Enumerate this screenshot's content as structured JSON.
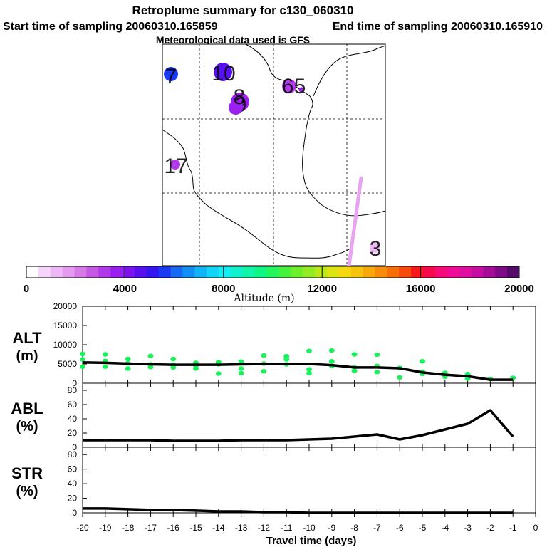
{
  "chart_data": {
    "title": "Retroplume summary for c130_060310",
    "start_label": "Start time of sampling 20060310.165859",
    "end_label": "End time of sampling 20060310.165910",
    "met_label": "Meteorological data used is GFS",
    "map": {
      "type": "map",
      "plume_markers": [
        {
          "label": "7",
          "altitude": 5500,
          "size": 3
        },
        {
          "label": "10",
          "altitude": 4300,
          "size": 4
        },
        {
          "label": "9",
          "altitude": 3500,
          "size": 4
        },
        {
          "label": "8",
          "altitude": 3300,
          "size": 3
        },
        {
          "label": "6",
          "altitude": 3000,
          "size": 3
        },
        {
          "label": "5",
          "altitude": 3600,
          "size": 1
        },
        {
          "label": "17",
          "altitude": 3000,
          "size": 2
        },
        {
          "label": "3",
          "altitude": 1200,
          "size": 2
        }
      ],
      "trail_altitude": 1000
    },
    "colorbar": {
      "label": "Altitude (m)",
      "min": 0,
      "max": 20000,
      "ticks": [
        "0",
        "4000",
        "8000",
        "12000",
        "16000",
        "20000"
      ],
      "colors": [
        "#ffffff",
        "#f5d6fb",
        "#edb8f5",
        "#e39af0",
        "#d57ae8",
        "#c659e4",
        "#b33aea",
        "#9b1fef",
        "#7d12ef",
        "#5810ef",
        "#3316f2",
        "#1a3bf4",
        "#1668f5",
        "#128ff6",
        "#10b4f8",
        "#0fd6f9",
        "#10f0f4",
        "#0ff2ce",
        "#0ff6a8",
        "#10f682",
        "#22f65e",
        "#44f43c",
        "#6cf02c",
        "#93ec22",
        "#b9e818",
        "#dde412",
        "#f3da10",
        "#f7c40c",
        "#f8a808",
        "#f88c06",
        "#f86e06",
        "#f84a0a",
        "#f81818",
        "#f80a4a",
        "#f80a78",
        "#f00c96",
        "#e00ea0",
        "#c80ea2",
        "#a60c9a",
        "#7e0a86",
        "#560a6a"
      ]
    },
    "panels": [
      {
        "id": "alt",
        "label_line1": "ALT",
        "label_line2": "(m)",
        "ymin": 0,
        "ymax": 20000,
        "yticks": [
          "20000",
          "15000",
          "10000",
          "5000",
          "0"
        ],
        "x": [
          -20,
          -19,
          -18,
          -17,
          -16,
          -15,
          -14,
          -13,
          -12,
          -11,
          -10,
          -9,
          -8,
          -7,
          -6,
          -5,
          -4,
          -3,
          -2,
          -1
        ],
        "values": [
          5400,
          5300,
          5100,
          4900,
          4800,
          4800,
          4800,
          4900,
          5000,
          5000,
          5000,
          4700,
          4100,
          4100,
          3900,
          2800,
          2200,
          1800,
          900,
          900
        ],
        "scatter": [
          {
            "x": -20,
            "y": 7600
          },
          {
            "x": -20,
            "y": 6200
          },
          {
            "x": -20,
            "y": 4300
          },
          {
            "x": -19,
            "y": 7500
          },
          {
            "x": -19,
            "y": 5800
          },
          {
            "x": -19,
            "y": 4300
          },
          {
            "x": -18,
            "y": 6300
          },
          {
            "x": -18,
            "y": 5200
          },
          {
            "x": -18,
            "y": 3800
          },
          {
            "x": -17,
            "y": 7100
          },
          {
            "x": -17,
            "y": 4900
          },
          {
            "x": -17,
            "y": 4200
          },
          {
            "x": -16,
            "y": 6300
          },
          {
            "x": -16,
            "y": 4800
          },
          {
            "x": -16,
            "y": 4100
          },
          {
            "x": -15,
            "y": 5300
          },
          {
            "x": -15,
            "y": 4500
          },
          {
            "x": -15,
            "y": 3800
          },
          {
            "x": -14,
            "y": 5500
          },
          {
            "x": -14,
            "y": 4900
          },
          {
            "x": -14,
            "y": 2500
          },
          {
            "x": -13,
            "y": 5600
          },
          {
            "x": -13,
            "y": 3800
          },
          {
            "x": -13,
            "y": 2600
          },
          {
            "x": -12,
            "y": 7200
          },
          {
            "x": -12,
            "y": 5100
          },
          {
            "x": -12,
            "y": 3100
          },
          {
            "x": -11,
            "y": 7000
          },
          {
            "x": -11,
            "y": 6200
          },
          {
            "x": -11,
            "y": 4900
          },
          {
            "x": -10,
            "y": 8400
          },
          {
            "x": -10,
            "y": 3600
          },
          {
            "x": -10,
            "y": 2600
          },
          {
            "x": -9,
            "y": 8500
          },
          {
            "x": -9,
            "y": 5700
          },
          {
            "x": -9,
            "y": 4500
          },
          {
            "x": -8,
            "y": 7500
          },
          {
            "x": -8,
            "y": 4100
          },
          {
            "x": -8,
            "y": 3200
          },
          {
            "x": -7,
            "y": 7400
          },
          {
            "x": -7,
            "y": 4500
          },
          {
            "x": -7,
            "y": 2900
          },
          {
            "x": -6,
            "y": 4000
          },
          {
            "x": -6,
            "y": 1500
          },
          {
            "x": -5,
            "y": 5700
          },
          {
            "x": -5,
            "y": 3000
          },
          {
            "x": -5,
            "y": 2400
          },
          {
            "x": -4,
            "y": 2700
          },
          {
            "x": -4,
            "y": 1700
          },
          {
            "x": -3,
            "y": 2400
          },
          {
            "x": -3,
            "y": 1200
          },
          {
            "x": -2,
            "y": 1100
          },
          {
            "x": -1,
            "y": 1400
          }
        ]
      },
      {
        "id": "abl",
        "label_line1": "ABL",
        "label_line2": "(%)",
        "ymin": 0,
        "ymax": 90,
        "yticks": [
          "80",
          "60",
          "40",
          "20",
          "0"
        ],
        "x": [
          -20,
          -19,
          -18,
          -17,
          -16,
          -15,
          -14,
          -13,
          -12,
          -11,
          -10,
          -9,
          -8,
          -7,
          -6,
          -5,
          -4,
          -3,
          -2,
          -1
        ],
        "values": [
          10,
          10,
          10,
          10,
          9,
          9,
          9,
          10,
          10,
          10,
          11,
          12,
          15,
          18,
          11,
          17,
          25,
          33,
          52,
          15
        ]
      },
      {
        "id": "str",
        "label_line1": "STR",
        "label_line2": "(%)",
        "ymin": 0,
        "ymax": 90,
        "yticks": [
          "80",
          "60",
          "40",
          "20",
          "0"
        ],
        "x": [
          -20,
          -19,
          -18,
          -17,
          -16,
          -15,
          -14,
          -13,
          -12,
          -11,
          -10,
          -9,
          -8,
          -7,
          -6,
          -5,
          -4,
          -3,
          -2,
          -1
        ],
        "values": [
          6,
          6,
          5,
          4,
          4,
          3,
          2,
          2,
          1,
          1,
          0,
          0,
          0,
          0,
          0,
          0,
          0,
          0,
          0,
          0
        ]
      }
    ],
    "xaxis": {
      "label": "Travel time (days)",
      "ticks": [
        "-20",
        "-19",
        "-18",
        "-17",
        "-16",
        "-15",
        "-14",
        "-13",
        "-12",
        "-11",
        "-10",
        "-9",
        "-8",
        "-7",
        "-6",
        "-5",
        "-4",
        "-3",
        "-2",
        "-1",
        "0"
      ]
    },
    "scatter_color": "#19f05c",
    "line_color": "#000000",
    "trail_color": "#e8a4f0"
  }
}
